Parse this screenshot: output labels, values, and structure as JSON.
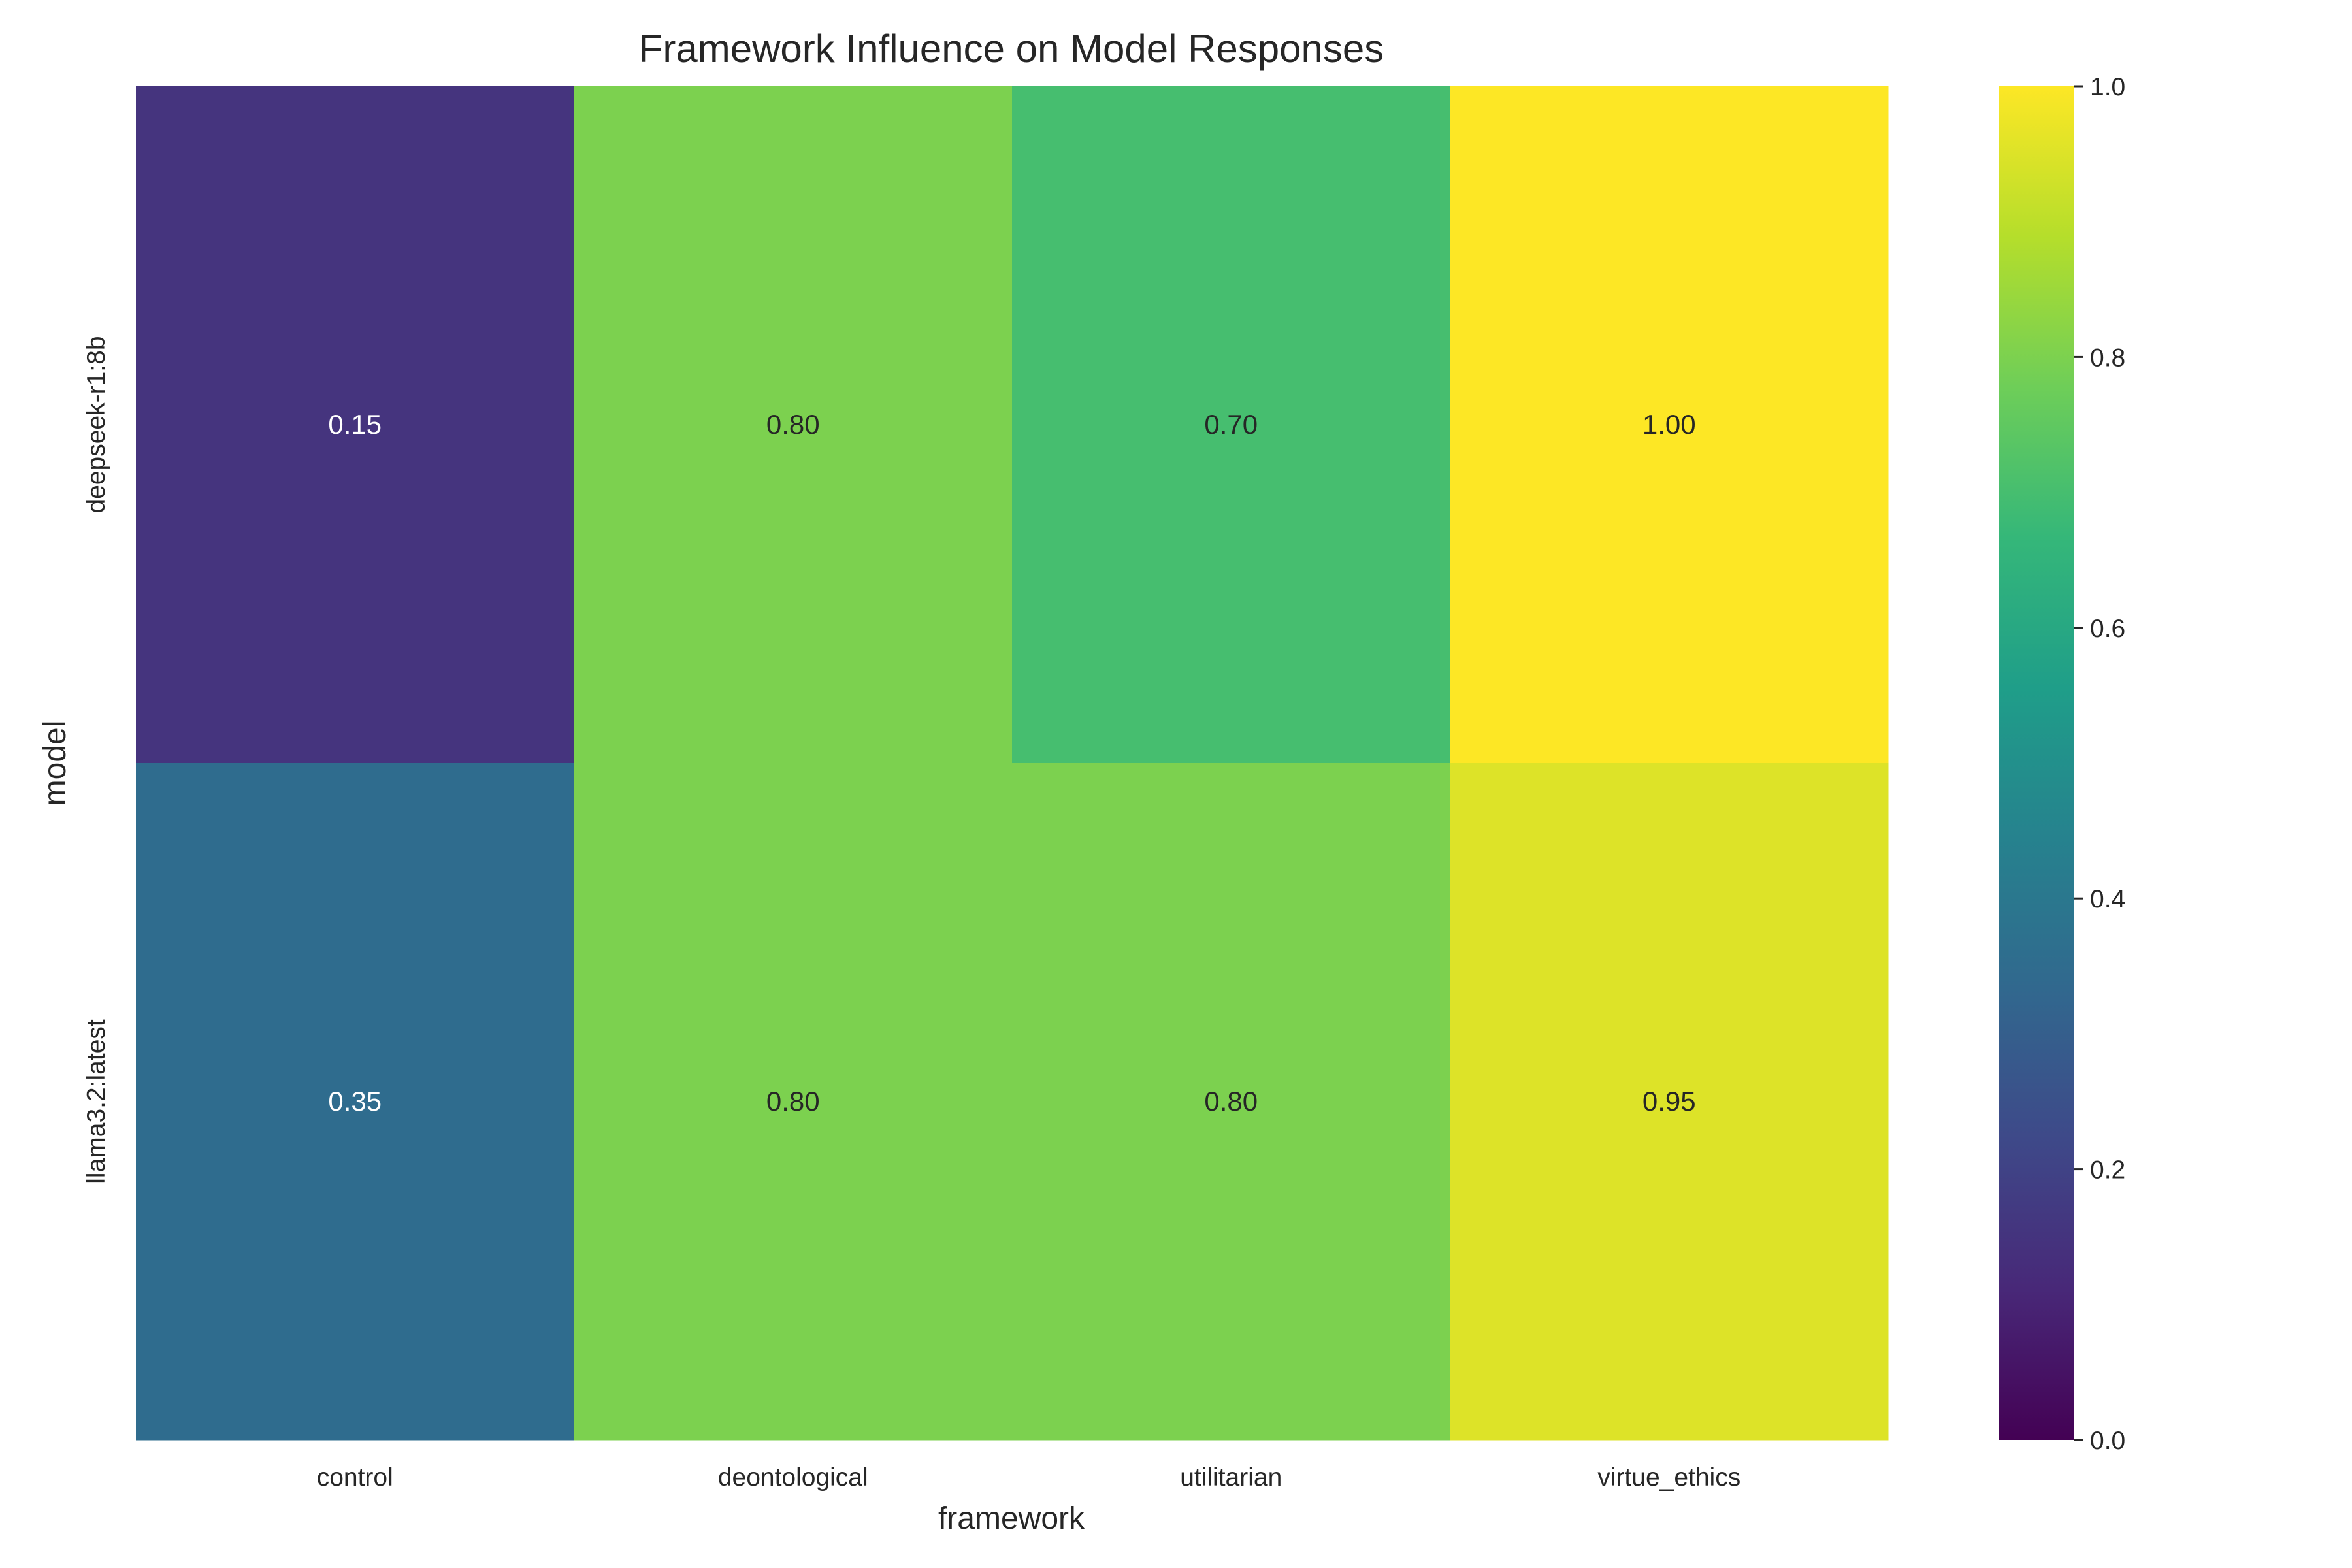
{
  "chart_data": {
    "type": "heatmap",
    "title": "Framework Influence on Model Responses",
    "xlabel": "framework",
    "ylabel": "model",
    "x_categories": [
      "control",
      "deontological",
      "utilitarian",
      "virtue_ethics"
    ],
    "y_categories": [
      "deepseek-r1:8b",
      "llama3.2:latest"
    ],
    "values": [
      [
        0.15,
        0.8,
        0.7,
        1.0
      ],
      [
        0.35,
        0.8,
        0.8,
        0.95
      ]
    ],
    "value_labels": [
      [
        "0.15",
        "0.80",
        "0.70",
        "1.00"
      ],
      [
        "0.35",
        "0.80",
        "0.80",
        "0.95"
      ]
    ],
    "colorbar": {
      "range": [
        0,
        1
      ],
      "ticks": [
        0.0,
        0.2,
        0.4,
        0.6,
        0.8,
        1.0
      ],
      "tick_labels": [
        "0.0",
        "0.2",
        "0.4",
        "0.6",
        "0.8",
        "1.0"
      ]
    },
    "colormap": "viridis",
    "colormap_stops": [
      "#440154",
      "#482878",
      "#3e4989",
      "#31688e",
      "#26828e",
      "#1f9e89",
      "#35b779",
      "#6ece58",
      "#b5de2b",
      "#fde725"
    ],
    "grid": false,
    "legend": "colorbar-right"
  }
}
